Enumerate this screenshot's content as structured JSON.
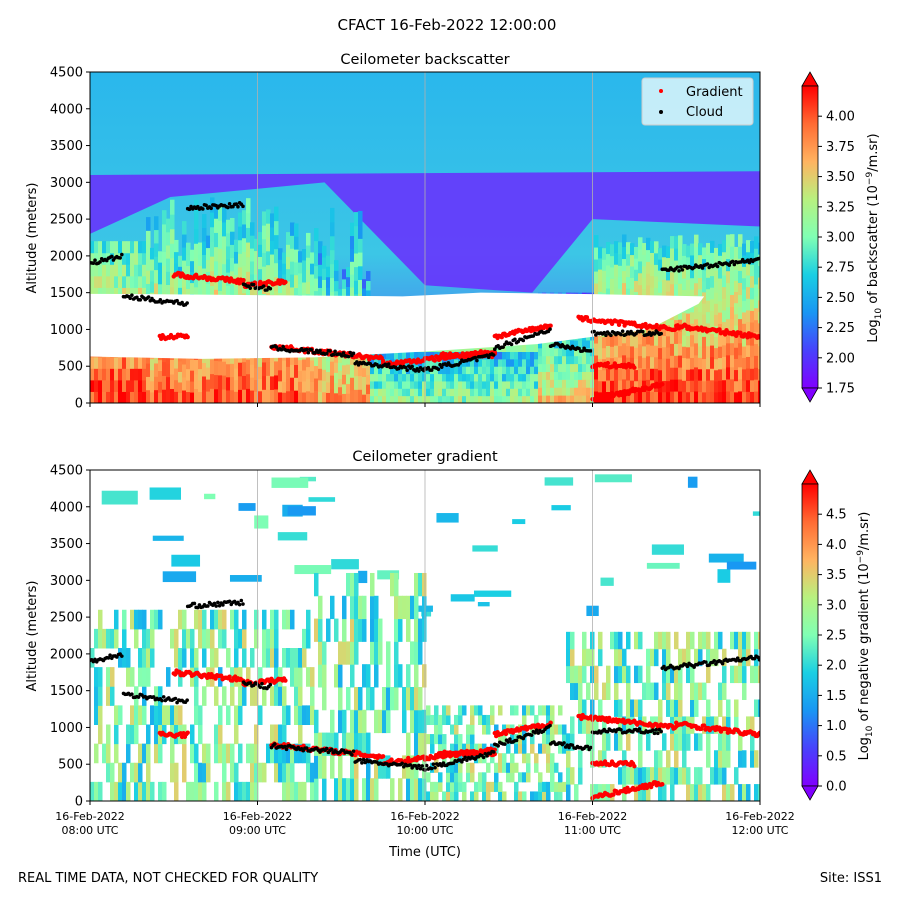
{
  "figure": {
    "suptitle": "CFACT 16-Feb-2022 12:00:00",
    "footer_left": "REAL TIME DATA, NOT CHECKED FOR QUALITY",
    "footer_right": "Site: ISS1"
  },
  "colors": {
    "gradient_marker": "#ff0000",
    "cloud_marker": "#000000",
    "missing": "#ffffff",
    "colormap": "rainbow"
  },
  "chart_data": [
    {
      "type": "heatmap",
      "title": "Ceilometer backscatter",
      "ylabel": "Altitude (meters)",
      "ylim": [
        0,
        4500
      ],
      "yticks": [
        0,
        500,
        1000,
        1500,
        2000,
        2500,
        3000,
        3500,
        4000,
        4500
      ],
      "xlim": [
        "08:00",
        "12:00"
      ],
      "xticks": [
        "08:00",
        "09:00",
        "10:00",
        "11:00",
        "12:00"
      ],
      "grid": "vertical",
      "legend": {
        "placement": "top-right",
        "entries": [
          "Gradient",
          "Cloud"
        ]
      },
      "colorbar": {
        "label_main": "Log",
        "label_sub": "10",
        "label_rest": " of backscatter (10",
        "label_exp": "−9",
        "label_end": "/m.sr)",
        "range": [
          1.75,
          4.25
        ],
        "ticks": [
          "1.75",
          "2.00",
          "2.25",
          "2.50",
          "2.75",
          "3.00",
          "3.25",
          "3.50",
          "3.75",
          "4.00"
        ],
        "extend": "both"
      },
      "regimes": [
        {
          "t0": "08:00",
          "t1": "08:20",
          "top": 2200,
          "pbl": 1400,
          "high_level": 4.2
        },
        {
          "t0": "08:20",
          "t1": "09:20",
          "top": 2800,
          "pbl": 1500,
          "high_level": 4.1
        },
        {
          "t0": "09:20",
          "t1": "10:40",
          "top": 1400,
          "pbl": 600,
          "high_level": 3.3
        },
        {
          "t0": "10:40",
          "t1": "12:00",
          "top": 2200,
          "pbl": 800,
          "high_level": 4.2
        }
      ]
    },
    {
      "type": "heatmap",
      "title": "Ceilometer gradient",
      "ylabel": "Altitude (meters)",
      "xlabel": "Time (UTC)",
      "ylim": [
        0,
        4500
      ],
      "yticks": [
        0,
        500,
        1000,
        1500,
        2000,
        2500,
        3000,
        3500,
        4000,
        4500
      ],
      "xlim": [
        "08:00",
        "12:00"
      ],
      "xticks": [
        "08:00",
        "09:00",
        "10:00",
        "11:00",
        "12:00"
      ],
      "xticklabels": [
        [
          "16-Feb-2022",
          "08:00 UTC"
        ],
        [
          "16-Feb-2022",
          "09:00 UTC"
        ],
        [
          "16-Feb-2022",
          "10:00 UTC"
        ],
        [
          "16-Feb-2022",
          "11:00 UTC"
        ],
        [
          "16-Feb-2022",
          "12:00 UTC"
        ]
      ],
      "grid": "vertical",
      "colorbar": {
        "label_main": "Log",
        "label_sub": "10",
        "label_rest": " of negative gradient (10",
        "label_exp": "−9",
        "label_end": "/m.sr)",
        "range": [
          0.0,
          5.0
        ],
        "ticks": [
          "0.0",
          "0.5",
          "1.0",
          "1.5",
          "2.0",
          "2.5",
          "3.0",
          "3.5",
          "4.0",
          "4.5"
        ],
        "extend": "both"
      }
    }
  ],
  "series": {
    "cloud_base": {
      "name": "Cloud",
      "segments": [
        {
          "t0": "08:00",
          "t1": "08:12",
          "alt0": 1900,
          "alt1": 2000
        },
        {
          "t0": "08:12",
          "t1": "08:35",
          "alt0": 1450,
          "alt1": 1350
        },
        {
          "t0": "08:35",
          "t1": "08:55",
          "alt0": 2650,
          "alt1": 2700
        },
        {
          "t0": "08:55",
          "t1": "09:05",
          "alt0": 1600,
          "alt1": 1550
        },
        {
          "t0": "09:05",
          "t1": "09:35",
          "alt0": 750,
          "alt1": 650
        },
        {
          "t0": "09:35",
          "t1": "10:00",
          "alt0": 550,
          "alt1": 450
        },
        {
          "t0": "10:00",
          "t1": "10:25",
          "alt0": 450,
          "alt1": 650
        },
        {
          "t0": "10:25",
          "t1": "10:45",
          "alt0": 750,
          "alt1": 1000
        },
        {
          "t0": "10:45",
          "t1": "11:00",
          "alt0": 800,
          "alt1": 700
        },
        {
          "t0": "11:00",
          "t1": "11:25",
          "alt0": 950,
          "alt1": 950
        },
        {
          "t0": "11:25",
          "t1": "12:00",
          "alt0": 1800,
          "alt1": 1950
        }
      ]
    },
    "gradient": {
      "name": "Gradient",
      "segments": [
        {
          "t0": "08:25",
          "t1": "08:35",
          "alt0": 900,
          "alt1": 900
        },
        {
          "t0": "08:30",
          "t1": "08:55",
          "alt0": 1750,
          "alt1": 1650
        },
        {
          "t0": "08:55",
          "t1": "09:10",
          "alt0": 1600,
          "alt1": 1650
        },
        {
          "t0": "09:05",
          "t1": "09:45",
          "alt0": 770,
          "alt1": 600
        },
        {
          "t0": "09:45",
          "t1": "10:25",
          "alt0": 520,
          "alt1": 700
        },
        {
          "t0": "10:25",
          "t1": "10:45",
          "alt0": 900,
          "alt1": 1050
        },
        {
          "t0": "10:05",
          "t1": "10:25",
          "alt0": 650,
          "alt1": 650
        },
        {
          "t0": "10:55",
          "t1": "11:30",
          "alt0": 1150,
          "alt1": 1000
        },
        {
          "t0": "11:30",
          "t1": "12:00",
          "alt0": 1050,
          "alt1": 900
        },
        {
          "t0": "11:00",
          "t1": "11:15",
          "alt0": 520,
          "alt1": 500
        },
        {
          "t0": "11:00",
          "t1": "11:25",
          "alt0": 50,
          "alt1": 250
        }
      ]
    }
  }
}
